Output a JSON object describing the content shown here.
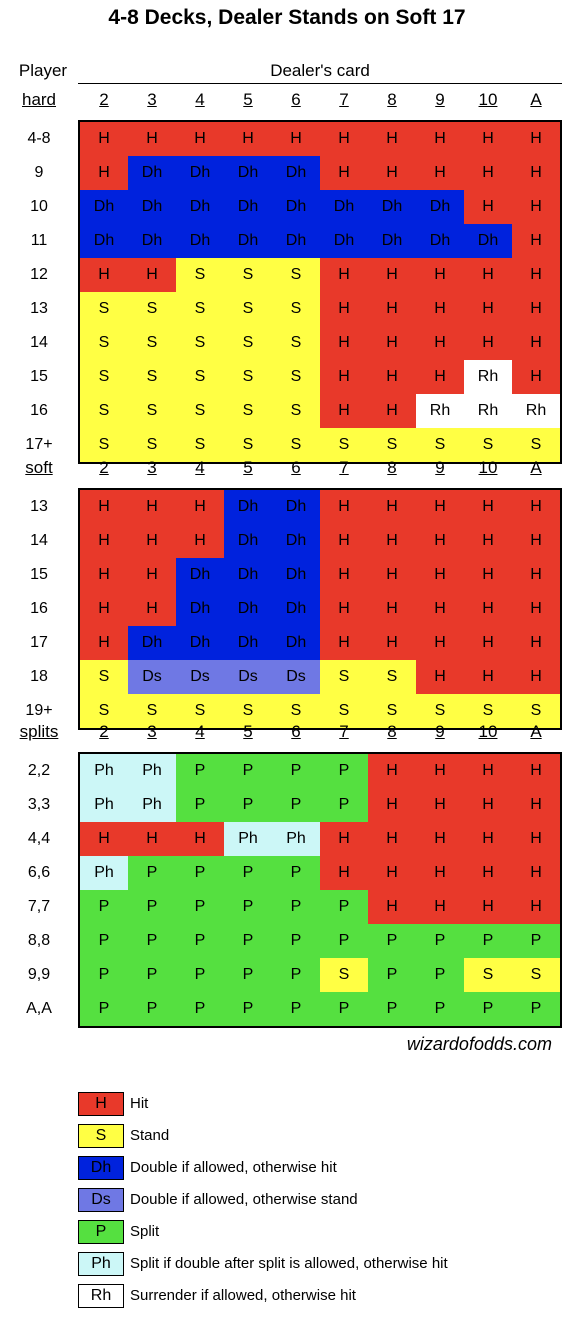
{
  "title": "4-8 Decks, Dealer Stands on Soft 17",
  "header": {
    "player_label": "Player",
    "dealer_label": "Dealer's card"
  },
  "dealer_cards": [
    "2",
    "3",
    "4",
    "5",
    "6",
    "7",
    "8",
    "9",
    "10",
    "A"
  ],
  "sections": [
    {
      "label": "hard",
      "rows": [
        {
          "hand": "4-8",
          "actions": [
            "H",
            "H",
            "H",
            "H",
            "H",
            "H",
            "H",
            "H",
            "H",
            "H"
          ]
        },
        {
          "hand": "9",
          "actions": [
            "H",
            "Dh",
            "Dh",
            "Dh",
            "Dh",
            "H",
            "H",
            "H",
            "H",
            "H"
          ]
        },
        {
          "hand": "10",
          "actions": [
            "Dh",
            "Dh",
            "Dh",
            "Dh",
            "Dh",
            "Dh",
            "Dh",
            "Dh",
            "H",
            "H"
          ]
        },
        {
          "hand": "11",
          "actions": [
            "Dh",
            "Dh",
            "Dh",
            "Dh",
            "Dh",
            "Dh",
            "Dh",
            "Dh",
            "Dh",
            "H"
          ]
        },
        {
          "hand": "12",
          "actions": [
            "H",
            "H",
            "S",
            "S",
            "S",
            "H",
            "H",
            "H",
            "H",
            "H"
          ]
        },
        {
          "hand": "13",
          "actions": [
            "S",
            "S",
            "S",
            "S",
            "S",
            "H",
            "H",
            "H",
            "H",
            "H"
          ]
        },
        {
          "hand": "14",
          "actions": [
            "S",
            "S",
            "S",
            "S",
            "S",
            "H",
            "H",
            "H",
            "H",
            "H"
          ]
        },
        {
          "hand": "15",
          "actions": [
            "S",
            "S",
            "S",
            "S",
            "S",
            "H",
            "H",
            "H",
            "Rh",
            "H"
          ]
        },
        {
          "hand": "16",
          "actions": [
            "S",
            "S",
            "S",
            "S",
            "S",
            "H",
            "H",
            "Rh",
            "Rh",
            "Rh"
          ]
        },
        {
          "hand": "17+",
          "actions": [
            "S",
            "S",
            "S",
            "S",
            "S",
            "S",
            "S",
            "S",
            "S",
            "S"
          ]
        }
      ]
    },
    {
      "label": "soft",
      "rows": [
        {
          "hand": "13",
          "actions": [
            "H",
            "H",
            "H",
            "Dh",
            "Dh",
            "H",
            "H",
            "H",
            "H",
            "H"
          ]
        },
        {
          "hand": "14",
          "actions": [
            "H",
            "H",
            "H",
            "Dh",
            "Dh",
            "H",
            "H",
            "H",
            "H",
            "H"
          ]
        },
        {
          "hand": "15",
          "actions": [
            "H",
            "H",
            "Dh",
            "Dh",
            "Dh",
            "H",
            "H",
            "H",
            "H",
            "H"
          ]
        },
        {
          "hand": "16",
          "actions": [
            "H",
            "H",
            "Dh",
            "Dh",
            "Dh",
            "H",
            "H",
            "H",
            "H",
            "H"
          ]
        },
        {
          "hand": "17",
          "actions": [
            "H",
            "Dh",
            "Dh",
            "Dh",
            "Dh",
            "H",
            "H",
            "H",
            "H",
            "H"
          ]
        },
        {
          "hand": "18",
          "actions": [
            "S",
            "Ds",
            "Ds",
            "Ds",
            "Ds",
            "S",
            "S",
            "H",
            "H",
            "H"
          ]
        },
        {
          "hand": "19+",
          "actions": [
            "S",
            "S",
            "S",
            "S",
            "S",
            "S",
            "S",
            "S",
            "S",
            "S"
          ]
        }
      ]
    },
    {
      "label": "splits",
      "rows": [
        {
          "hand": "2,2",
          "actions": [
            "Ph",
            "Ph",
            "P",
            "P",
            "P",
            "P",
            "H",
            "H",
            "H",
            "H"
          ]
        },
        {
          "hand": "3,3",
          "actions": [
            "Ph",
            "Ph",
            "P",
            "P",
            "P",
            "P",
            "H",
            "H",
            "H",
            "H"
          ]
        },
        {
          "hand": "4,4",
          "actions": [
            "H",
            "H",
            "H",
            "Ph",
            "Ph",
            "H",
            "H",
            "H",
            "H",
            "H"
          ]
        },
        {
          "hand": "6,6",
          "actions": [
            "Ph",
            "P",
            "P",
            "P",
            "P",
            "H",
            "H",
            "H",
            "H",
            "H"
          ]
        },
        {
          "hand": "7,7",
          "actions": [
            "P",
            "P",
            "P",
            "P",
            "P",
            "P",
            "H",
            "H",
            "H",
            "H"
          ]
        },
        {
          "hand": "8,8",
          "actions": [
            "P",
            "P",
            "P",
            "P",
            "P",
            "P",
            "P",
            "P",
            "P",
            "P"
          ]
        },
        {
          "hand": "9,9",
          "actions": [
            "P",
            "P",
            "P",
            "P",
            "P",
            "S",
            "P",
            "P",
            "S",
            "S"
          ]
        },
        {
          "hand": "A,A",
          "actions": [
            "P",
            "P",
            "P",
            "P",
            "P",
            "P",
            "P",
            "P",
            "P",
            "P"
          ]
        }
      ]
    }
  ],
  "credit": "wizardofodds.com",
  "legend": [
    {
      "code": "H",
      "text": "Hit"
    },
    {
      "code": "S",
      "text": "Stand"
    },
    {
      "code": "Dh",
      "text": "Double if allowed, otherwise hit"
    },
    {
      "code": "Ds",
      "text": "Double if allowed, otherwise stand"
    },
    {
      "code": "P",
      "text": "Split"
    },
    {
      "code": "Ph",
      "text": "Split if double after split is allowed, otherwise hit"
    },
    {
      "code": "Rh",
      "text": "Surrender if allowed, otherwise hit"
    }
  ],
  "colors": {
    "H": "#e8392a",
    "S": "#ffff44",
    "Dh": "#0022dd",
    "Ds": "#6f78e4",
    "P": "#55e040",
    "Ph": "#ccf7f7",
    "Rh": "#ffffff"
  }
}
